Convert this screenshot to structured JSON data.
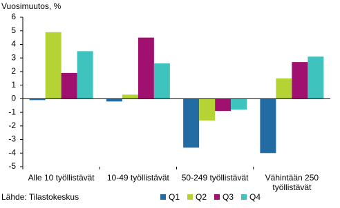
{
  "chart_data": {
    "type": "bar",
    "title": "Vuosimuutos, %",
    "source": "Lähde: Tilastokeskus",
    "categories": [
      "Alle 10 työllistävät",
      "10-49 työllistävät",
      "50-249 työllistävät",
      "Vähintään 250 työllistävät"
    ],
    "series": [
      {
        "name": "Q1",
        "color": "#236ba3",
        "values": [
          -0.1,
          -0.2,
          -3.6,
          -4.0
        ]
      },
      {
        "name": "Q2",
        "color": "#b5d334",
        "values": [
          4.9,
          0.3,
          -1.6,
          1.5
        ]
      },
      {
        "name": "Q3",
        "color": "#a0106e",
        "values": [
          1.9,
          4.5,
          -0.9,
          2.7
        ]
      },
      {
        "name": "Q4",
        "color": "#3ec3bf",
        "values": [
          3.5,
          2.6,
          -0.8,
          3.1
        ]
      }
    ],
    "ylim": [
      -5,
      6
    ],
    "yticks": [
      -5,
      -4,
      -3,
      -2,
      -1,
      0,
      1,
      2,
      3,
      4,
      5,
      6
    ],
    "grid": false
  }
}
